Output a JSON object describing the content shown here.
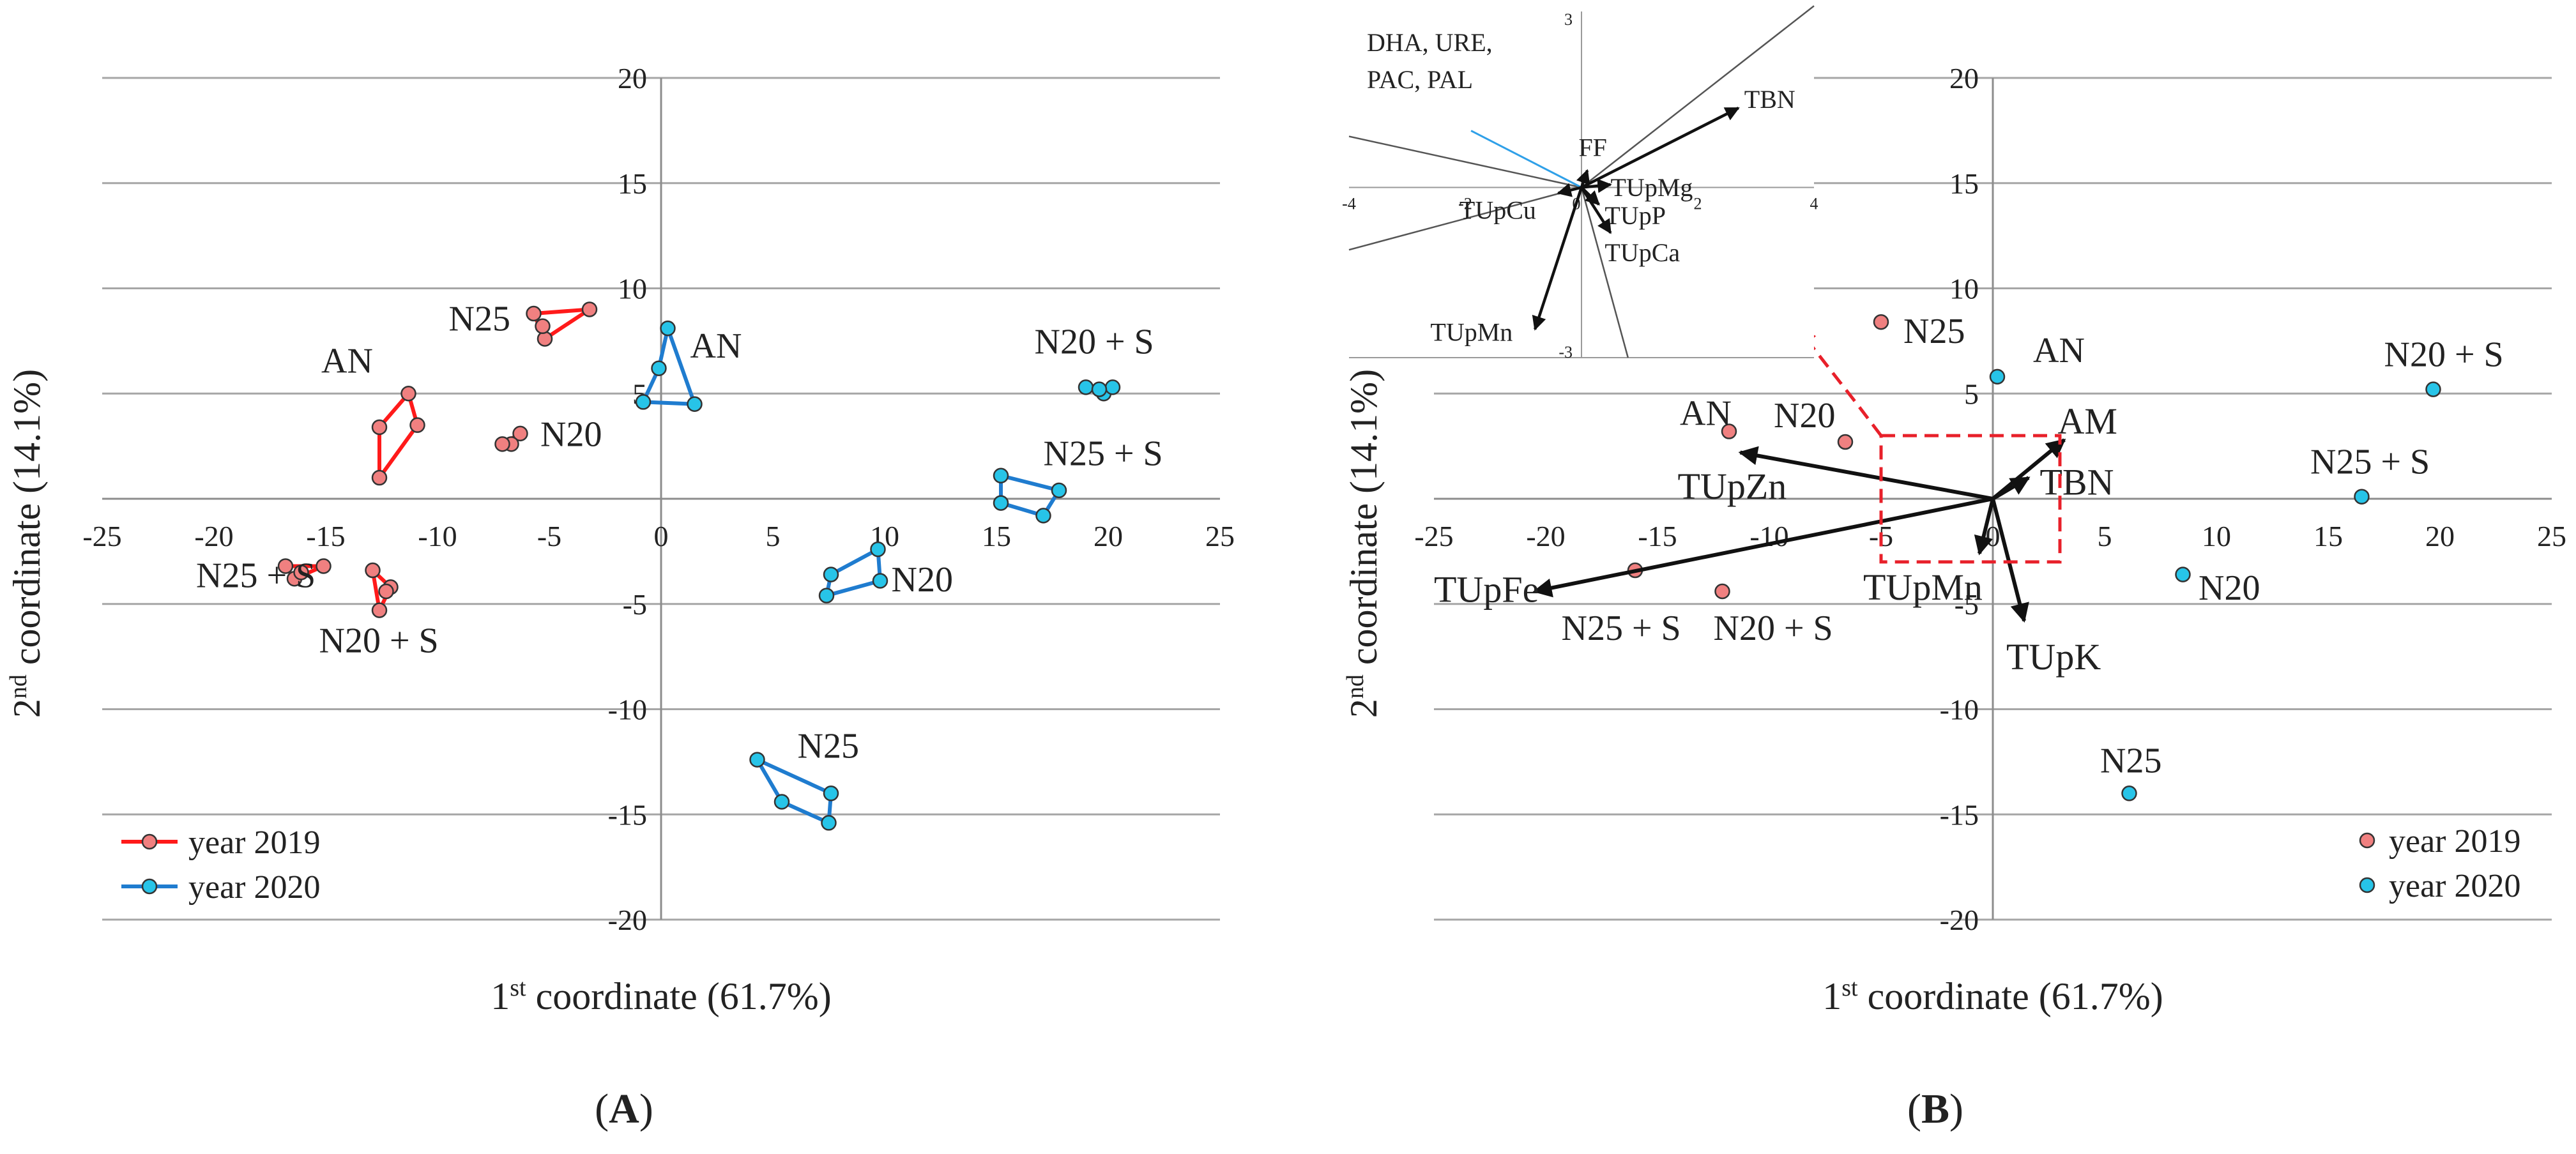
{
  "colors": {
    "y2019_fill": "#f08080",
    "y2019_line": "#ff1a1a",
    "y2020_fill": "#27c4e8",
    "y2020_line": "#1f7ccf",
    "dash": "#e8202a",
    "vector": "#111111",
    "inset_line": "#555555",
    "inset_highlight": "#2fa0e8"
  },
  "chart_data": [
    {
      "type": "scatter",
      "panel": "A",
      "panel_label_open": "(",
      "panel_label_letter": "A",
      "panel_label_close": ")",
      "xlabel_pre": "1",
      "xlabel_sup": "st",
      "xlabel_post": " coordinate (61.7%)",
      "ylabel_pre": "2",
      "ylabel_sup": "nd",
      "ylabel_post": " coordinate (14.1%)",
      "xlim": [
        -25,
        25
      ],
      "ylim": [
        -20,
        20
      ],
      "xticks": [
        -25,
        -20,
        -15,
        -10,
        -5,
        0,
        5,
        10,
        15,
        20,
        25
      ],
      "yticks": [
        -20,
        -15,
        -10,
        -5,
        0,
        5,
        10,
        15,
        20
      ],
      "legend": [
        {
          "name": "year 2019",
          "color_key": "y2019"
        },
        {
          "name": "year 2020",
          "color_key": "y2020"
        }
      ],
      "groups": [
        {
          "name": "N25",
          "year": "2019",
          "points": [
            [
              -5.7,
              8.8
            ],
            [
              -3.2,
              9.0
            ],
            [
              -5.2,
              7.6
            ],
            [
              -5.3,
              8.2
            ]
          ],
          "hull": [
            [
              -5.7,
              8.8
            ],
            [
              -3.2,
              9.0
            ],
            [
              -5.2,
              7.6
            ]
          ],
          "label_at": [
            -9.5,
            8.0
          ]
        },
        {
          "name": "AN",
          "year": "2019",
          "points": [
            [
              -11.3,
              5.0
            ],
            [
              -10.9,
              3.5
            ],
            [
              -12.6,
              1.0
            ],
            [
              -12.6,
              3.4
            ]
          ],
          "hull": [
            [
              -11.3,
              5.0
            ],
            [
              -10.9,
              3.5
            ],
            [
              -12.6,
              1.0
            ],
            [
              -12.6,
              3.4
            ]
          ],
          "label_at": [
            -15.2,
            6.0
          ]
        },
        {
          "name": "N20",
          "year": "2019",
          "points": [
            [
              -6.3,
              3.1
            ],
            [
              -6.7,
              2.6
            ],
            [
              -7.1,
              2.6
            ]
          ],
          "hull": [
            [
              -6.3,
              3.1
            ],
            [
              -6.7,
              2.6
            ],
            [
              -7.1,
              2.6
            ]
          ],
          "label_at": [
            -5.4,
            2.5
          ]
        },
        {
          "name": "N25 + S",
          "year": "2019",
          "points": [
            [
              -16.8,
              -3.2
            ],
            [
              -16.4,
              -3.8
            ],
            [
              -16.1,
              -3.5
            ],
            [
              -15.1,
              -3.2
            ]
          ],
          "hull": [
            [
              -16.8,
              -3.2
            ],
            [
              -16.4,
              -3.8
            ],
            [
              -15.1,
              -3.2
            ]
          ],
          "label_at": [
            -20.8,
            -4.2
          ]
        },
        {
          "name": "N20 + S",
          "year": "2019",
          "points": [
            [
              -12.9,
              -3.4
            ],
            [
              -12.1,
              -4.2
            ],
            [
              -12.6,
              -5.3
            ],
            [
              -12.3,
              -4.4
            ]
          ],
          "hull": [
            [
              -12.9,
              -3.4
            ],
            [
              -12.1,
              -4.2
            ],
            [
              -12.6,
              -5.3
            ]
          ],
          "label_at": [
            -15.3,
            -7.3
          ]
        },
        {
          "name": "AN",
          "year": "2020",
          "points": [
            [
              0.3,
              8.1
            ],
            [
              -0.1,
              6.2
            ],
            [
              -0.8,
              4.6
            ],
            [
              1.5,
              4.5
            ]
          ],
          "hull": [
            [
              0.3,
              8.1
            ],
            [
              -0.1,
              6.2
            ],
            [
              -0.8,
              4.6
            ],
            [
              1.5,
              4.5
            ]
          ],
          "label_at": [
            1.3,
            6.7
          ]
        },
        {
          "name": "N20 + S",
          "year": "2020",
          "points": [
            [
              19.0,
              5.3
            ],
            [
              19.8,
              5.0
            ],
            [
              20.2,
              5.3
            ],
            [
              19.6,
              5.2
            ]
          ],
          "hull": [
            [
              19.0,
              5.3
            ],
            [
              19.8,
              5.0
            ],
            [
              20.2,
              5.3
            ]
          ],
          "label_at": [
            16.7,
            6.9
          ]
        },
        {
          "name": "N25 + S",
          "year": "2020",
          "points": [
            [
              15.2,
              1.1
            ],
            [
              17.8,
              0.4
            ],
            [
              17.1,
              -0.8
            ],
            [
              15.2,
              -0.2
            ]
          ],
          "hull": [
            [
              15.2,
              1.1
            ],
            [
              17.8,
              0.4
            ],
            [
              17.1,
              -0.8
            ],
            [
              15.2,
              -0.2
            ]
          ],
          "label_at": [
            17.1,
            1.6
          ]
        },
        {
          "name": "N20",
          "year": "2020",
          "points": [
            [
              9.7,
              -2.4
            ],
            [
              9.8,
              -3.9
            ],
            [
              7.6,
              -3.6
            ],
            [
              7.4,
              -4.6
            ]
          ],
          "hull": [
            [
              9.7,
              -2.4
            ],
            [
              9.8,
              -3.9
            ],
            [
              7.4,
              -4.6
            ],
            [
              7.6,
              -3.6
            ]
          ],
          "label_at": [
            10.3,
            -4.4
          ]
        },
        {
          "name": "N25",
          "year": "2020",
          "points": [
            [
              4.3,
              -12.4
            ],
            [
              7.6,
              -14.0
            ],
            [
              5.4,
              -14.4
            ],
            [
              7.5,
              -15.4
            ]
          ],
          "hull": [
            [
              4.3,
              -12.4
            ],
            [
              7.6,
              -14.0
            ],
            [
              7.5,
              -15.4
            ],
            [
              5.4,
              -14.4
            ]
          ],
          "label_at": [
            6.1,
            -12.3
          ]
        }
      ]
    },
    {
      "type": "scatter",
      "panel": "B",
      "panel_label_open": "(",
      "panel_label_letter": "B",
      "panel_label_close": ")",
      "xlabel_pre": "1",
      "xlabel_sup": "st",
      "xlabel_post": " coordinate (61.7%)",
      "ylabel_pre": "2",
      "ylabel_sup": "nd",
      "ylabel_post": " coordinate (14.1%)",
      "xlim": [
        -25,
        25
      ],
      "ylim": [
        -20,
        20
      ],
      "xticks": [
        -25,
        -20,
        -15,
        -10,
        -5,
        0,
        5,
        10,
        15,
        20,
        25
      ],
      "yticks": [
        -20,
        -15,
        -10,
        -5,
        0,
        5,
        10,
        15,
        20
      ],
      "legend": [
        {
          "name": "year 2019",
          "color_key": "y2019"
        },
        {
          "name": "year 2020",
          "color_key": "y2020"
        }
      ],
      "points": [
        {
          "name": "N25",
          "year": "2019",
          "x": -5.0,
          "y": 8.4,
          "label_at": [
            -4.0,
            7.4
          ]
        },
        {
          "name": "AN",
          "year": "2019",
          "x": -11.8,
          "y": 3.2,
          "label_at": [
            -14.0,
            3.5
          ]
        },
        {
          "name": "N20",
          "year": "2019",
          "x": -6.6,
          "y": 2.7,
          "label_at": [
            -9.8,
            3.4
          ]
        },
        {
          "name": "N25 + S",
          "year": "2019",
          "x": -16.0,
          "y": -3.4,
          "label_at": [
            -19.3,
            -6.7
          ]
        },
        {
          "name": "N20 + S",
          "year": "2019",
          "x": -12.1,
          "y": -4.4,
          "label_at": [
            -12.5,
            -6.7
          ]
        },
        {
          "name": "AN",
          "year": "2020",
          "x": 0.2,
          "y": 5.8,
          "label_at": [
            1.8,
            6.5
          ]
        },
        {
          "name": "N20 + S",
          "year": "2020",
          "x": 19.7,
          "y": 5.2,
          "label_at": [
            17.5,
            6.3
          ]
        },
        {
          "name": "N25 + S",
          "year": "2020",
          "x": 16.5,
          "y": 0.1,
          "label_at": [
            14.2,
            1.2
          ]
        },
        {
          "name": "N20",
          "year": "2020",
          "x": 8.5,
          "y": -3.6,
          "label_at": [
            9.2,
            -4.8
          ]
        },
        {
          "name": "N25",
          "year": "2020",
          "x": 6.1,
          "y": -14.0,
          "label_at": [
            4.8,
            -13.0
          ]
        }
      ],
      "vectors": [
        {
          "name": "AM",
          "x": 3.2,
          "y": 2.8,
          "label_at": [
            2.9,
            3.1
          ]
        },
        {
          "name": "TBN",
          "x": 1.6,
          "y": 1.0,
          "label_at": [
            2.1,
            0.2
          ]
        },
        {
          "name": "TUpZn",
          "x": -11.3,
          "y": 2.2,
          "label_at": [
            -14.1,
            0.0
          ]
        },
        {
          "name": "TUpFe",
          "x": -20.5,
          "y": -4.4,
          "label_at": [
            -25.0,
            -4.9
          ]
        },
        {
          "name": "TUpMn",
          "x": -0.6,
          "y": -2.6,
          "label_at": [
            -5.8,
            -4.8
          ]
        },
        {
          "name": "TUpK",
          "x": 1.4,
          "y": -5.8,
          "label_at": [
            0.6,
            -8.1
          ]
        }
      ],
      "zoom_box": {
        "x": [
          -5,
          3
        ],
        "y": [
          -3,
          3
        ]
      },
      "inset": {
        "xlim": [
          -4,
          4
        ],
        "ylim": [
          -3,
          3
        ],
        "xticks": [
          -4,
          -2,
          0,
          2,
          4
        ],
        "yticks": [
          -3,
          0,
          3
        ],
        "group_label_lines": [
          "DHA, URE,",
          "PAC, PAL"
        ],
        "vectors": [
          {
            "name": "TBN",
            "x": 2.7,
            "y": 1.4,
            "bold": true,
            "label_at": [
              2.8,
              1.4
            ]
          },
          {
            "name": "FF",
            "x": 0.1,
            "y": 0.3,
            "bold": true,
            "label_at": [
              -0.05,
              0.55
            ]
          },
          {
            "name": "TUpMg",
            "x": 0.5,
            "y": 0.05,
            "bold": true,
            "label_at": [
              0.5,
              -0.15
            ]
          },
          {
            "name": "TUpP",
            "x": 0.3,
            "y": -0.3,
            "bold": true,
            "label_at": [
              0.4,
              -0.65
            ]
          },
          {
            "name": "TUpCu",
            "x": -0.4,
            "y": -0.1,
            "bold": true,
            "label_at": [
              -2.1,
              -0.55
            ]
          },
          {
            "name": "TUpCa",
            "x": 0.5,
            "y": -0.8,
            "bold": true,
            "label_at": [
              0.4,
              -1.3
            ]
          },
          {
            "name": "TUpMn",
            "x": -0.8,
            "y": -2.5,
            "bold": true,
            "label_at": [
              -2.6,
              -2.7
            ]
          }
        ],
        "lines": [
          {
            "x": 4.0,
            "y": 3.2
          },
          {
            "x": -4.0,
            "y": 0.9
          },
          {
            "x": -4.0,
            "y": -1.1
          },
          {
            "x": 0.8,
            "y": -3.0
          }
        ],
        "highlight_line": {
          "x": -1.9,
          "y": 1.0
        }
      }
    }
  ]
}
